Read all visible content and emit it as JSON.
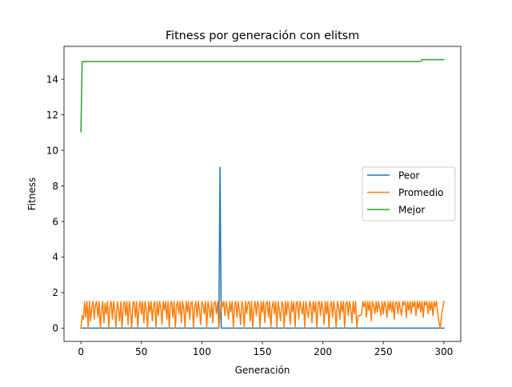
{
  "chart_data": {
    "type": "line",
    "title": "Fitness por generación con elitsm",
    "xlabel": "Generación",
    "ylabel": "Fitness",
    "xlim": [
      -14,
      314
    ],
    "ylim": [
      -0.75,
      15.85
    ],
    "xticks": [
      0,
      50,
      100,
      150,
      200,
      250,
      300
    ],
    "yticks": [
      0,
      2,
      4,
      6,
      8,
      10,
      12,
      14
    ],
    "legend": "center-right",
    "grid": false,
    "series": [
      {
        "name": "Peor",
        "color": "#1f77b4",
        "points": [
          [
            0,
            0
          ],
          [
            114,
            0
          ],
          [
            115,
            9.05
          ],
          [
            116,
            0
          ],
          [
            300,
            0
          ]
        ]
      },
      {
        "name": "Promedio",
        "color": "#ff7f0e",
        "points": [
          [
            0,
            0.0
          ],
          [
            1,
            0.7
          ],
          [
            2,
            0.5
          ],
          [
            3,
            1.5
          ],
          [
            4,
            0.6
          ],
          [
            5,
            1.5
          ],
          [
            6,
            0.0
          ],
          [
            7,
            1.5
          ],
          [
            8,
            0.4
          ],
          [
            9,
            1.2
          ],
          [
            10,
            1.5
          ],
          [
            11,
            0.5
          ],
          [
            12,
            1.3
          ],
          [
            13,
            1.5
          ],
          [
            14,
            0.6
          ],
          [
            15,
            1.5
          ],
          [
            16,
            0.0
          ],
          [
            17,
            1.0
          ],
          [
            18,
            1.5
          ],
          [
            19,
            0.3
          ],
          [
            20,
            1.4
          ],
          [
            21,
            0.8
          ],
          [
            22,
            1.5
          ],
          [
            23,
            0.0
          ],
          [
            24,
            1.2
          ],
          [
            25,
            1.5
          ],
          [
            26,
            0.5
          ],
          [
            27,
            1.5
          ],
          [
            28,
            0.9
          ],
          [
            29,
            0.0
          ],
          [
            30,
            1.5
          ],
          [
            31,
            1.1
          ],
          [
            32,
            0.4
          ],
          [
            33,
            1.5
          ],
          [
            34,
            0.0
          ],
          [
            35,
            1.3
          ],
          [
            36,
            1.5
          ],
          [
            37,
            0.7
          ],
          [
            38,
            1.5
          ],
          [
            39,
            0.2
          ],
          [
            40,
            1.5
          ],
          [
            41,
            1.0
          ],
          [
            42,
            0.0
          ],
          [
            43,
            1.4
          ],
          [
            44,
            1.5
          ],
          [
            45,
            0.6
          ],
          [
            46,
            1.5
          ],
          [
            47,
            0.0
          ],
          [
            48,
            1.2
          ],
          [
            49,
            1.5
          ],
          [
            50,
            0.8
          ],
          [
            51,
            1.5
          ],
          [
            52,
            0.3
          ],
          [
            53,
            1.5
          ],
          [
            54,
            1.1
          ],
          [
            55,
            0.0
          ],
          [
            56,
            1.5
          ],
          [
            57,
            0.9
          ],
          [
            58,
            1.5
          ],
          [
            59,
            0.4
          ],
          [
            60,
            1.3
          ],
          [
            61,
            1.5
          ],
          [
            62,
            0.0
          ],
          [
            63,
            1.5
          ],
          [
            64,
            0.7
          ],
          [
            65,
            1.5
          ],
          [
            66,
            1.2
          ],
          [
            67,
            0.2
          ],
          [
            68,
            1.5
          ],
          [
            69,
            1.0
          ],
          [
            70,
            1.5
          ],
          [
            71,
            0.5
          ],
          [
            72,
            1.5
          ],
          [
            73,
            0.0
          ],
          [
            74,
            1.4
          ],
          [
            75,
            1.5
          ],
          [
            76,
            0.6
          ],
          [
            77,
            1.5
          ],
          [
            78,
            0.0
          ],
          [
            79,
            1.3
          ],
          [
            80,
            1.5
          ],
          [
            81,
            0.8
          ],
          [
            82,
            1.5
          ],
          [
            83,
            0.3
          ],
          [
            84,
            1.5
          ],
          [
            85,
            1.1
          ],
          [
            86,
            0.0
          ],
          [
            87,
            1.5
          ],
          [
            88,
            0.9
          ],
          [
            89,
            1.5
          ],
          [
            90,
            0.5
          ],
          [
            91,
            1.4
          ],
          [
            92,
            1.5
          ],
          [
            93,
            0.0
          ],
          [
            94,
            1.2
          ],
          [
            95,
            1.5
          ],
          [
            96,
            0.6
          ],
          [
            97,
            1.5
          ],
          [
            98,
            1.0
          ],
          [
            99,
            0.2
          ],
          [
            100,
            1.5
          ],
          [
            101,
            1.3
          ],
          [
            102,
            0.8
          ],
          [
            103,
            1.5
          ],
          [
            104,
            0.0
          ],
          [
            105,
            1.5
          ],
          [
            106,
            1.1
          ],
          [
            107,
            0.6
          ],
          [
            108,
            1.5
          ],
          [
            109,
            0.3
          ],
          [
            110,
            1.4
          ],
          [
            111,
            1.5
          ],
          [
            112,
            0.8
          ],
          [
            113,
            1.5
          ],
          [
            114,
            0.0
          ],
          [
            115,
            0.7
          ],
          [
            116,
            1.5
          ],
          [
            117,
            1.2
          ],
          [
            118,
            1.5
          ],
          [
            119,
            0.7
          ],
          [
            120,
            1.5
          ],
          [
            121,
            1.1
          ],
          [
            122,
            0.5
          ],
          [
            123,
            1.5
          ],
          [
            124,
            0.9
          ],
          [
            125,
            1.5
          ],
          [
            126,
            0.0
          ],
          [
            127,
            1.3
          ],
          [
            128,
            1.5
          ],
          [
            129,
            0.6
          ],
          [
            130,
            1.5
          ],
          [
            131,
            1.0
          ],
          [
            132,
            0.2
          ],
          [
            133,
            1.5
          ],
          [
            134,
            1.2
          ],
          [
            135,
            0.0
          ],
          [
            136,
            1.5
          ],
          [
            137,
            0.8
          ],
          [
            138,
            1.4
          ],
          [
            139,
            1.5
          ],
          [
            140,
            0.4
          ],
          [
            141,
            1.5
          ],
          [
            142,
            0.0
          ],
          [
            143,
            1.1
          ],
          [
            144,
            1.5
          ],
          [
            145,
            0.7
          ],
          [
            146,
            1.5
          ],
          [
            147,
            1.3
          ],
          [
            148,
            0.0
          ],
          [
            149,
            1.5
          ],
          [
            150,
            0.9
          ],
          [
            151,
            1.5
          ],
          [
            152,
            0.3
          ],
          [
            153,
            1.4
          ],
          [
            154,
            1.5
          ],
          [
            155,
            0.6
          ],
          [
            156,
            1.5
          ],
          [
            157,
            0.0
          ],
          [
            158,
            1.2
          ],
          [
            159,
            1.5
          ],
          [
            160,
            0.8
          ],
          [
            161,
            1.5
          ],
          [
            162,
            0.0
          ],
          [
            163,
            1.5
          ],
          [
            164,
            1.0
          ],
          [
            165,
            0.4
          ],
          [
            166,
            1.5
          ],
          [
            167,
            1.3
          ],
          [
            168,
            0.0
          ],
          [
            169,
            1.5
          ],
          [
            170,
            0.7
          ],
          [
            171,
            1.5
          ],
          [
            172,
            1.1
          ],
          [
            173,
            0.2
          ],
          [
            174,
            1.5
          ],
          [
            175,
            0.9
          ],
          [
            176,
            1.5
          ],
          [
            177,
            0.0
          ],
          [
            178,
            1.4
          ],
          [
            179,
            1.5
          ],
          [
            180,
            0.5
          ],
          [
            181,
            1.5
          ],
          [
            182,
            1.2
          ],
          [
            183,
            0.8
          ],
          [
            184,
            1.5
          ],
          [
            185,
            0.0
          ],
          [
            186,
            1.5
          ],
          [
            187,
            1.0
          ],
          [
            188,
            0.6
          ],
          [
            189,
            1.5
          ],
          [
            190,
            1.3
          ],
          [
            191,
            0.3
          ],
          [
            192,
            1.5
          ],
          [
            193,
            0.9
          ],
          [
            194,
            1.5
          ],
          [
            195,
            0.0
          ],
          [
            196,
            1.4
          ],
          [
            197,
            1.5
          ],
          [
            198,
            0.7
          ],
          [
            199,
            1.5
          ],
          [
            200,
            1.1
          ],
          [
            201,
            0.2
          ],
          [
            202,
            1.5
          ],
          [
            203,
            0.8
          ],
          [
            204,
            1.5
          ],
          [
            205,
            0.0
          ],
          [
            206,
            1.3
          ],
          [
            207,
            1.5
          ],
          [
            208,
            0.6
          ],
          [
            209,
            1.5
          ],
          [
            210,
            1.0
          ],
          [
            211,
            0.0
          ],
          [
            212,
            1.5
          ],
          [
            213,
            1.2
          ],
          [
            214,
            0.5
          ],
          [
            215,
            1.5
          ],
          [
            216,
            0.9
          ],
          [
            217,
            1.5
          ],
          [
            218,
            0.0
          ],
          [
            219,
            1.4
          ],
          [
            220,
            1.5
          ],
          [
            221,
            0.7
          ],
          [
            222,
            1.5
          ],
          [
            223,
            1.1
          ],
          [
            224,
            0.3
          ],
          [
            225,
            1.5
          ],
          [
            226,
            0.8
          ],
          [
            227,
            1.5
          ],
          [
            228,
            0.0
          ],
          [
            229,
            0.7
          ],
          [
            230,
            0.7
          ],
          [
            231,
            0.7
          ],
          [
            232,
            0.8
          ],
          [
            233,
            1.5
          ],
          [
            234,
            1.2
          ],
          [
            235,
            1.5
          ],
          [
            236,
            0.6
          ],
          [
            237,
            1.5
          ],
          [
            238,
            1.0
          ],
          [
            239,
            1.5
          ],
          [
            240,
            0.4
          ],
          [
            241,
            1.5
          ],
          [
            242,
            1.3
          ],
          [
            243,
            0.8
          ],
          [
            244,
            1.5
          ],
          [
            245,
            0.9
          ],
          [
            246,
            1.5
          ],
          [
            247,
            1.1
          ],
          [
            248,
            0.7
          ],
          [
            249,
            1.5
          ],
          [
            250,
            0.8
          ],
          [
            251,
            1.5
          ],
          [
            252,
            1.2
          ],
          [
            253,
            0.6
          ],
          [
            254,
            1.5
          ],
          [
            255,
            1.0
          ],
          [
            256,
            1.5
          ],
          [
            257,
            0.9
          ],
          [
            258,
            1.5
          ],
          [
            259,
            0.5
          ],
          [
            260,
            1.4
          ],
          [
            261,
            1.5
          ],
          [
            262,
            0.8
          ],
          [
            263,
            1.5
          ],
          [
            264,
            1.1
          ],
          [
            265,
            0.7
          ],
          [
            266,
            1.5
          ],
          [
            267,
            1.3
          ],
          [
            268,
            1.5
          ],
          [
            269,
            0.6
          ],
          [
            270,
            1.5
          ],
          [
            271,
            1.0
          ],
          [
            272,
            1.5
          ],
          [
            273,
            0.8
          ],
          [
            274,
            1.5
          ],
          [
            275,
            1.2
          ],
          [
            276,
            1.5
          ],
          [
            277,
            0.7
          ],
          [
            278,
            1.5
          ],
          [
            279,
            1.1
          ],
          [
            280,
            1.5
          ],
          [
            281,
            0.9
          ],
          [
            282,
            1.5
          ],
          [
            283,
            0.6
          ],
          [
            284,
            1.5
          ],
          [
            285,
            1.3
          ],
          [
            286,
            1.5
          ],
          [
            287,
            0.8
          ],
          [
            288,
            1.5
          ],
          [
            289,
            1.0
          ],
          [
            290,
            1.5
          ],
          [
            291,
            0.7
          ],
          [
            292,
            1.5
          ],
          [
            293,
            1.2
          ],
          [
            294,
            1.5
          ],
          [
            295,
            0.8
          ],
          [
            296,
            0.3
          ],
          [
            297,
            0.0
          ],
          [
            298,
            0.7
          ],
          [
            299,
            1.1
          ],
          [
            300,
            1.5
          ]
        ]
      },
      {
        "name": "Mejor",
        "color": "#2ca02c",
        "points": [
          [
            0,
            11.05
          ],
          [
            1,
            15.0
          ],
          [
            281,
            15.0
          ],
          [
            282,
            15.1
          ],
          [
            300,
            15.1
          ]
        ]
      }
    ]
  }
}
